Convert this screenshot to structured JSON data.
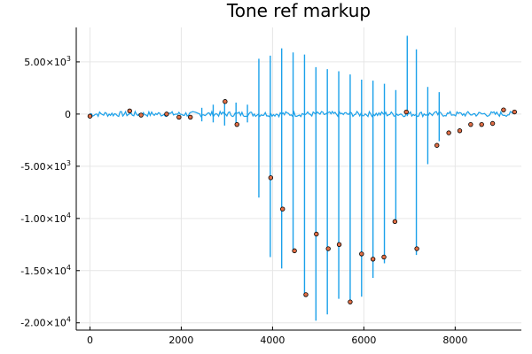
{
  "chart_data": {
    "type": "line",
    "title": "Tone ref markup",
    "xlabel": "",
    "ylabel": "",
    "xlim": [
      -300,
      9450
    ],
    "ylim": [
      -20700,
      8300
    ],
    "grid": true,
    "legend": "none",
    "x_ticks": [
      {
        "value": 0,
        "label": "0"
      },
      {
        "value": 2000,
        "label": "2000"
      },
      {
        "value": 4000,
        "label": "4000"
      },
      {
        "value": 6000,
        "label": "6000"
      },
      {
        "value": 8000,
        "label": "8000"
      }
    ],
    "y_ticks": [
      {
        "value": 5000,
        "mantissa": "5.00×10",
        "exp": "3"
      },
      {
        "value": 0,
        "mantissa": "0",
        "exp": ""
      },
      {
        "value": -5000,
        "mantissa": "-5.00×10",
        "exp": "3"
      },
      {
        "value": -10000,
        "mantissa": "-1.00×10",
        "exp": "4"
      },
      {
        "value": -15000,
        "mantissa": "-1.50×10",
        "exp": "4"
      },
      {
        "value": -20000,
        "mantissa": "-2.00×10",
        "exp": "4"
      }
    ],
    "colors": {
      "line": "#1ba1ea",
      "marker_fill": "#e26f46",
      "marker_stroke": "#000000"
    },
    "series": [
      {
        "type": "line",
        "spikes": [
          {
            "x": 3700,
            "max": 5300,
            "min": -8000
          },
          {
            "x": 3950,
            "max": 5600,
            "min": -13700
          },
          {
            "x": 4200,
            "max": 6300,
            "min": -14800
          },
          {
            "x": 4450,
            "max": 5900,
            "min": -13000
          },
          {
            "x": 4700,
            "max": 5700,
            "min": -17500
          },
          {
            "x": 4950,
            "max": 4500,
            "min": -19800
          },
          {
            "x": 5200,
            "max": 4300,
            "min": -19200
          },
          {
            "x": 5450,
            "max": 4100,
            "min": -17700
          },
          {
            "x": 5700,
            "max": 3800,
            "min": -18200
          },
          {
            "x": 5950,
            "max": 3300,
            "min": -17500
          },
          {
            "x": 6200,
            "max": 3200,
            "min": -15700
          },
          {
            "x": 6450,
            "max": 2900,
            "min": -14300
          },
          {
            "x": 6700,
            "max": 2300,
            "min": -10200
          },
          {
            "x": 6950,
            "max": 7500,
            "min": -200
          },
          {
            "x": 7150,
            "max": 6200,
            "min": -13500
          },
          {
            "x": 7400,
            "max": 2600,
            "min": -4800
          },
          {
            "x": 7650,
            "max": 2100,
            "min": -2600
          }
        ],
        "small_spikes": [
          {
            "x": 2450,
            "max": 600,
            "min": -700
          },
          {
            "x": 2700,
            "max": 900,
            "min": -800
          },
          {
            "x": 2950,
            "max": 1300,
            "min": -1100
          },
          {
            "x": 3200,
            "max": 1100,
            "min": -900
          },
          {
            "x": 3450,
            "max": 900,
            "min": -800
          }
        ],
        "baseline_noise": 250,
        "x_range": [
          0,
          9300
        ]
      },
      {
        "type": "scatter",
        "x": [
          0,
          870,
          1120,
          1680,
          1950,
          2200,
          2960,
          3220,
          3960,
          4220,
          4480,
          4730,
          4960,
          5220,
          5460,
          5700,
          5950,
          6200,
          6440,
          6680,
          6930,
          7160,
          7600,
          7860,
          8100,
          8340,
          8580,
          8820,
          9060,
          9300
        ],
        "y": [
          -200,
          300,
          -100,
          0,
          -300,
          -300,
          1200,
          -1000,
          -6100,
          -9100,
          -13100,
          -17300,
          -11500,
          -12900,
          -12500,
          -18000,
          -13400,
          -13900,
          -13700,
          -10300,
          200,
          -12900,
          -3000,
          -1800,
          -1600,
          -1000,
          -1000,
          -900,
          400,
          200
        ]
      }
    ]
  }
}
